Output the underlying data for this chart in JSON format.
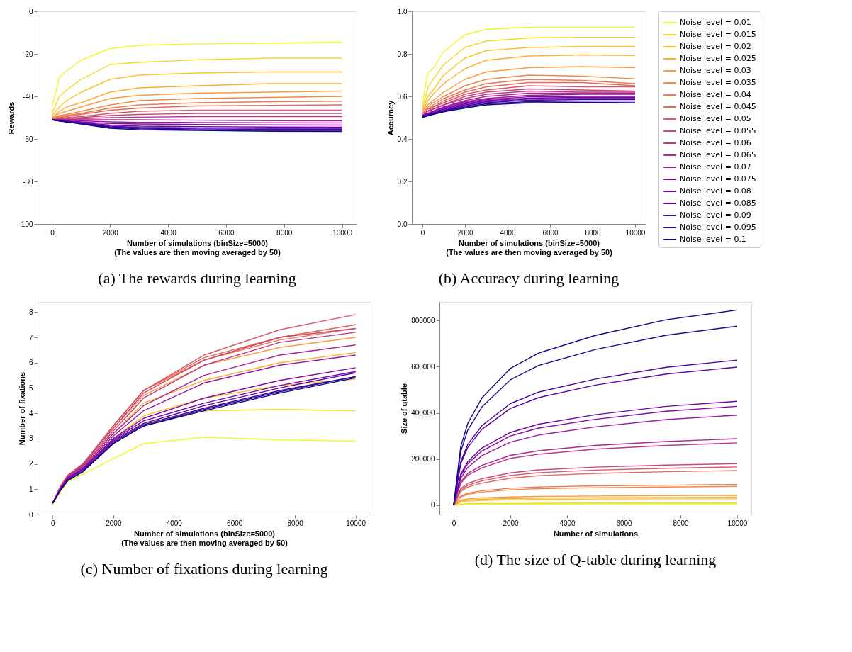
{
  "chart_data": [
    {
      "type": "line",
      "title": "(a) The rewards during learning",
      "xlabel": "Number of simulations (binSize=5000)\n(The values are then moving averaged by 50)",
      "ylabel": "Rewards",
      "xlim": [
        -500,
        10500
      ],
      "xticks": [
        0,
        2000,
        4000,
        6000,
        8000,
        10000
      ],
      "ylim": [
        -100,
        0
      ],
      "yticks": [
        -100,
        -80,
        -60,
        -40,
        -20,
        0
      ],
      "x": [
        0,
        250,
        500,
        1000,
        2000,
        3000,
        5000,
        7500,
        10000
      ],
      "series": [
        {
          "color": "#f0f921",
          "values": [
            -45,
            -31,
            -28,
            -23,
            -17.5,
            -16,
            -15.3,
            -15,
            -14.5
          ]
        },
        {
          "color": "#f6d826",
          "values": [
            -48,
            -40,
            -37,
            -32,
            -25,
            -24,
            -22.8,
            -22,
            -22
          ]
        },
        {
          "color": "#fcc229",
          "values": [
            -49,
            -45,
            -42,
            -38,
            -32,
            -30,
            -29,
            -28.5,
            -28.5
          ]
        },
        {
          "color": "#fdad32",
          "values": [
            -50,
            -47,
            -45,
            -43,
            -38,
            -36,
            -35,
            -34,
            -34
          ]
        },
        {
          "color": "#fa9b3d",
          "values": [
            -50,
            -48,
            -47,
            -45,
            -41,
            -39.5,
            -38.5,
            -38,
            -37.5
          ]
        },
        {
          "color": "#f48849",
          "values": [
            -50.5,
            -49,
            -48.5,
            -47,
            -44,
            -42,
            -41,
            -40.5,
            -40
          ]
        },
        {
          "color": "#ed7953",
          "values": [
            -50.5,
            -49.5,
            -49,
            -48,
            -45.5,
            -44,
            -43,
            -42.5,
            -42.3
          ]
        },
        {
          "color": "#e3685f",
          "values": [
            -50.5,
            -50,
            -49.5,
            -48.5,
            -46.5,
            -45.5,
            -44.5,
            -44.2,
            -44
          ]
        },
        {
          "color": "#d8576b",
          "values": [
            -51,
            -50.5,
            -50,
            -49.5,
            -48,
            -47,
            -46.5,
            -46.5,
            -46.5
          ]
        },
        {
          "color": "#cc4778",
          "values": [
            -51,
            -50.5,
            -50.5,
            -50,
            -49,
            -48.5,
            -48,
            -48,
            -48
          ]
        },
        {
          "color": "#bd3786",
          "values": [
            -51,
            -51,
            -51,
            -50.5,
            -50,
            -49.8,
            -49.5,
            -49.5,
            -49.5
          ]
        },
        {
          "color": "#ac2694",
          "values": [
            -51,
            -51,
            -51,
            -51,
            -51,
            -51,
            -51.2,
            -51.4,
            -51.5
          ]
        },
        {
          "color": "#9a169f",
          "values": [
            -51,
            -51,
            -51.2,
            -51.5,
            -52,
            -52.2,
            -52.3,
            -52.4,
            -52.5
          ]
        },
        {
          "color": "#8707a6",
          "values": [
            -51,
            -51.2,
            -51.5,
            -52,
            -52.8,
            -53,
            -53.2,
            -53.4,
            -53.5
          ]
        },
        {
          "color": "#7201a8",
          "values": [
            -51,
            -51.3,
            -51.7,
            -52.3,
            -53.5,
            -54,
            -54.2,
            -54.4,
            -54.5
          ]
        },
        {
          "color": "#5c01a6",
          "values": [
            -51,
            -51.4,
            -51.8,
            -52.5,
            -54,
            -54.6,
            -54.8,
            -55,
            -55
          ]
        },
        {
          "color": "#46039f",
          "values": [
            -51,
            -51.5,
            -51.9,
            -52.7,
            -54.3,
            -55,
            -55.3,
            -55.5,
            -55.5
          ]
        },
        {
          "color": "#290593",
          "values": [
            -51,
            -51.5,
            -52,
            -52.8,
            -54.6,
            -55.3,
            -55.7,
            -56,
            -56
          ]
        },
        {
          "color": "#0d0887",
          "values": [
            -51,
            -51.6,
            -52,
            -53,
            -55,
            -55.7,
            -56,
            -56.4,
            -56.5
          ]
        }
      ]
    },
    {
      "type": "line",
      "title": "(b) Accuracy during learning",
      "xlabel": "Number of simulations (binSize=5000)\n(The values are then moving averaged by 50)",
      "ylabel": "Accuracy",
      "legend": "right",
      "xlim": [
        -500,
        10500
      ],
      "xticks": [
        0,
        2000,
        4000,
        6000,
        8000,
        10000
      ],
      "ylim": [
        0,
        1
      ],
      "yticks": [
        {
          "value": 0,
          "label": "0.0"
        },
        0.2,
        0.4,
        0.6,
        0.8,
        {
          "value": 1,
          "label": "1.0"
        }
      ],
      "x": [
        0,
        250,
        500,
        1000,
        2000,
        3000,
        5000,
        7500,
        10000
      ],
      "series": [
        {
          "name": "Noise level = 0.01",
          "color": "#f0f921",
          "values": [
            0.57,
            0.71,
            0.73,
            0.81,
            0.89,
            0.915,
            0.925,
            0.925,
            0.925
          ]
        },
        {
          "name": "Noise level = 0.015",
          "color": "#f6d826",
          "values": [
            0.55,
            0.64,
            0.68,
            0.75,
            0.83,
            0.86,
            0.875,
            0.878,
            0.878
          ]
        },
        {
          "name": "Noise level = 0.02",
          "color": "#fcc229",
          "values": [
            0.54,
            0.6,
            0.63,
            0.7,
            0.78,
            0.815,
            0.83,
            0.835,
            0.835
          ]
        },
        {
          "name": "Noise level = 0.025",
          "color": "#fdad32",
          "values": [
            0.53,
            0.58,
            0.61,
            0.66,
            0.73,
            0.77,
            0.79,
            0.795,
            0.792
          ]
        },
        {
          "name": "Noise level = 0.03",
          "color": "#fa9b3d",
          "values": [
            0.53,
            0.56,
            0.58,
            0.62,
            0.68,
            0.715,
            0.735,
            0.74,
            0.735
          ]
        },
        {
          "name": "Noise level = 0.035",
          "color": "#f48849",
          "values": [
            0.52,
            0.55,
            0.57,
            0.6,
            0.65,
            0.68,
            0.7,
            0.695,
            0.683
          ]
        },
        {
          "name": "Noise level = 0.04",
          "color": "#ed7953",
          "values": [
            0.52,
            0.54,
            0.56,
            0.59,
            0.63,
            0.66,
            0.68,
            0.675,
            0.66
          ]
        },
        {
          "name": "Noise level = 0.045",
          "color": "#e3685f",
          "values": [
            0.52,
            0.54,
            0.55,
            0.58,
            0.62,
            0.645,
            0.665,
            0.665,
            0.65
          ]
        },
        {
          "name": "Noise level = 0.05",
          "color": "#d8576b",
          "values": [
            0.52,
            0.53,
            0.55,
            0.57,
            0.61,
            0.63,
            0.65,
            0.645,
            0.645
          ]
        },
        {
          "name": "Noise level = 0.055",
          "color": "#cc4778",
          "values": [
            0.51,
            0.53,
            0.54,
            0.56,
            0.6,
            0.62,
            0.635,
            0.63,
            0.625
          ]
        },
        {
          "name": "Noise level = 0.06",
          "color": "#bd3786",
          "values": [
            0.51,
            0.53,
            0.54,
            0.56,
            0.59,
            0.61,
            0.625,
            0.62,
            0.62
          ]
        },
        {
          "name": "Noise level = 0.065",
          "color": "#ac2694",
          "values": [
            0.51,
            0.52,
            0.53,
            0.55,
            0.58,
            0.6,
            0.615,
            0.615,
            0.615
          ]
        },
        {
          "name": "Noise level = 0.07",
          "color": "#9a169f",
          "values": [
            0.51,
            0.52,
            0.53,
            0.55,
            0.575,
            0.59,
            0.605,
            0.61,
            0.61
          ]
        },
        {
          "name": "Noise level = 0.075",
          "color": "#8707a6",
          "values": [
            0.51,
            0.52,
            0.53,
            0.545,
            0.57,
            0.585,
            0.598,
            0.6,
            0.6
          ]
        },
        {
          "name": "Noise level = 0.08",
          "color": "#7201a8",
          "values": [
            0.505,
            0.515,
            0.525,
            0.54,
            0.565,
            0.58,
            0.592,
            0.595,
            0.595
          ]
        },
        {
          "name": "Noise level = 0.085",
          "color": "#5c01a6",
          "values": [
            0.505,
            0.515,
            0.52,
            0.535,
            0.56,
            0.575,
            0.587,
            0.59,
            0.59
          ]
        },
        {
          "name": "Noise level = 0.09",
          "color": "#46039f",
          "values": [
            0.505,
            0.51,
            0.52,
            0.532,
            0.555,
            0.57,
            0.582,
            0.585,
            0.585
          ]
        },
        {
          "name": "Noise level = 0.095",
          "color": "#290593",
          "values": [
            0.503,
            0.51,
            0.517,
            0.53,
            0.55,
            0.565,
            0.575,
            0.578,
            0.578
          ]
        },
        {
          "name": "Noise level = 0.1",
          "color": "#0d0887",
          "values": [
            0.5,
            0.508,
            0.515,
            0.527,
            0.545,
            0.56,
            0.57,
            0.572,
            0.57
          ]
        }
      ]
    },
    {
      "type": "line",
      "title": "(c) Number of fixations during learning",
      "xlabel": "Number of simulations (binSize=5000)\n(The values are then moving averaged by 50)",
      "ylabel": "Number of fixations",
      "xlim": [
        -500,
        10500
      ],
      "xticks": [
        0,
        2000,
        4000,
        6000,
        8000,
        10000
      ],
      "ylim": [
        0,
        8.4
      ],
      "yticks": [
        0,
        1,
        2,
        3,
        4,
        5,
        6,
        7,
        8
      ],
      "x": [
        0,
        250,
        500,
        1000,
        2000,
        3000,
        5000,
        7500,
        10000
      ],
      "series": [
        {
          "color": "#f0f921",
          "values": [
            0.4,
            0.9,
            1.3,
            1.6,
            2.2,
            2.8,
            3.05,
            2.95,
            2.9
          ]
        },
        {
          "color": "#f6d826",
          "values": [
            0.4,
            1.0,
            1.4,
            1.7,
            2.8,
            3.6,
            4.1,
            4.15,
            4.1
          ]
        },
        {
          "color": "#fcc229",
          "values": [
            0.45,
            1.0,
            1.45,
            1.85,
            3.0,
            3.9,
            4.6,
            5.1,
            5.35
          ]
        },
        {
          "color": "#fdad32",
          "values": [
            0.45,
            1.05,
            1.5,
            1.95,
            3.2,
            4.4,
            5.3,
            6.0,
            6.4
          ]
        },
        {
          "color": "#fa9b3d",
          "values": [
            0.45,
            1.1,
            1.55,
            2.0,
            3.4,
            4.7,
            5.9,
            6.6,
            7.0
          ]
        },
        {
          "color": "#f48849",
          "values": [
            0.45,
            1.1,
            1.55,
            2.0,
            3.5,
            4.9,
            6.1,
            7.0,
            7.5
          ]
        },
        {
          "color": "#ed7953",
          "values": [
            0.45,
            1.1,
            1.55,
            2.0,
            3.5,
            4.9,
            6.1,
            6.9,
            7.35
          ]
        },
        {
          "color": "#e3685f",
          "values": [
            0.45,
            1.1,
            1.55,
            2.0,
            3.5,
            4.9,
            6.2,
            7.0,
            7.5
          ]
        },
        {
          "color": "#d8576b",
          "values": [
            0.45,
            1.1,
            1.55,
            2.0,
            3.5,
            4.9,
            6.3,
            7.3,
            7.9
          ]
        },
        {
          "color": "#cc4778",
          "values": [
            0.45,
            1.05,
            1.5,
            2.0,
            3.4,
            4.8,
            6.1,
            7.0,
            7.35
          ]
        },
        {
          "color": "#bd3786",
          "values": [
            0.45,
            1.05,
            1.5,
            1.95,
            3.3,
            4.6,
            5.9,
            6.8,
            7.2
          ]
        },
        {
          "color": "#ac2694",
          "values": [
            0.45,
            1.05,
            1.5,
            1.9,
            3.2,
            4.3,
            5.5,
            6.3,
            6.7
          ]
        },
        {
          "color": "#9a169f",
          "values": [
            0.45,
            1.0,
            1.45,
            1.85,
            3.1,
            4.1,
            5.2,
            5.9,
            6.3
          ]
        },
        {
          "color": "#8707a6",
          "values": [
            0.45,
            1.0,
            1.45,
            1.8,
            3.0,
            3.8,
            4.6,
            5.3,
            5.8
          ]
        },
        {
          "color": "#7201a8",
          "values": [
            0.45,
            1.0,
            1.4,
            1.8,
            2.95,
            3.7,
            4.4,
            5.1,
            5.65
          ]
        },
        {
          "color": "#5c01a6",
          "values": [
            0.45,
            1.0,
            1.4,
            1.75,
            2.9,
            3.6,
            4.3,
            5.0,
            5.6
          ]
        },
        {
          "color": "#46039f",
          "values": [
            0.45,
            0.95,
            1.35,
            1.7,
            2.85,
            3.55,
            4.2,
            4.9,
            5.45
          ]
        },
        {
          "color": "#290593",
          "values": [
            0.45,
            0.95,
            1.35,
            1.7,
            2.8,
            3.5,
            4.15,
            4.85,
            5.45
          ]
        },
        {
          "color": "#0d0887",
          "values": [
            0.45,
            0.95,
            1.35,
            1.7,
            2.8,
            3.5,
            4.1,
            4.8,
            5.4
          ]
        }
      ]
    },
    {
      "type": "line",
      "title": "(d) The size of Q-table during learning",
      "xlabel": "Number of simulations",
      "ylabel": "Size of qtable",
      "xlim": [
        -500,
        10500
      ],
      "xticks": [
        0,
        2000,
        4000,
        6000,
        8000,
        10000
      ],
      "ylim": [
        -40000,
        880000
      ],
      "yticks": [
        0,
        200000,
        400000,
        600000,
        800000
      ],
      "x": [
        0,
        250,
        500,
        1000,
        2000,
        3000,
        5000,
        7500,
        10000
      ],
      "series": [
        {
          "color": "#f0f921",
          "values": [
            0,
            3000,
            4000,
            5000,
            5000,
            5000,
            6000,
            6000,
            6000
          ]
        },
        {
          "color": "#f6d826",
          "values": [
            0,
            5000,
            7000,
            8000,
            8000,
            9000,
            10000,
            10000,
            10000
          ]
        },
        {
          "color": "#fcc229",
          "values": [
            0,
            14000,
            18000,
            21000,
            24000,
            25000,
            27000,
            28000,
            28000
          ]
        },
        {
          "color": "#fdad32",
          "values": [
            0,
            18000,
            23000,
            26000,
            29000,
            31000,
            33000,
            34000,
            35000
          ]
        },
        {
          "color": "#fa9b3d",
          "values": [
            0,
            22000,
            28000,
            32000,
            36000,
            38000,
            40000,
            42000,
            43000
          ]
        },
        {
          "color": "#f48849",
          "values": [
            0,
            36000,
            47000,
            57000,
            67000,
            72000,
            76000,
            79000,
            82000
          ]
        },
        {
          "color": "#ed7953",
          "values": [
            0,
            40000,
            52000,
            63000,
            74000,
            79000,
            84000,
            87000,
            90000
          ]
        },
        {
          "color": "#e3685f",
          "values": [
            0,
            60000,
            79000,
            96000,
            117000,
            128000,
            138000,
            145000,
            150000
          ]
        },
        {
          "color": "#d8576b",
          "values": [
            0,
            66000,
            87000,
            106000,
            129000,
            141000,
            152000,
            160000,
            166000
          ]
        },
        {
          "color": "#cc4778",
          "values": [
            0,
            72000,
            95000,
            115000,
            140000,
            153000,
            165000,
            174000,
            180000
          ]
        },
        {
          "color": "#bd3786",
          "values": [
            0,
            95000,
            130000,
            162000,
            203000,
            221000,
            243000,
            259000,
            270000
          ]
        },
        {
          "color": "#ac2694",
          "values": [
            0,
            101000,
            138000,
            173000,
            216000,
            236000,
            259000,
            276000,
            288000
          ]
        },
        {
          "color": "#9a169f",
          "values": [
            0,
            117000,
            164000,
            215000,
            273000,
            304000,
            339000,
            371000,
            390000
          ]
        },
        {
          "color": "#8707a6",
          "values": [
            0,
            128000,
            180000,
            235000,
            300000,
            334000,
            372000,
            407000,
            428000
          ]
        },
        {
          "color": "#7201a8",
          "values": [
            0,
            135000,
            189000,
            248000,
            315000,
            351000,
            392000,
            428000,
            450000
          ]
        },
        {
          "color": "#5c01a6",
          "values": [
            0,
            179000,
            251000,
            329000,
            419000,
            466000,
            520000,
            568000,
            598000
          ]
        },
        {
          "color": "#46039f",
          "values": [
            0,
            188000,
            264000,
            345000,
            440000,
            490000,
            546000,
            597000,
            628000
          ]
        },
        {
          "color": "#290593",
          "values": [
            0,
            233000,
            326000,
            426000,
            543000,
            605000,
            674000,
            736000,
            775000
          ]
        },
        {
          "color": "#0d0887",
          "values": [
            0,
            254000,
            355000,
            465000,
            592000,
            659000,
            735000,
            803000,
            845000
          ]
        }
      ]
    }
  ]
}
